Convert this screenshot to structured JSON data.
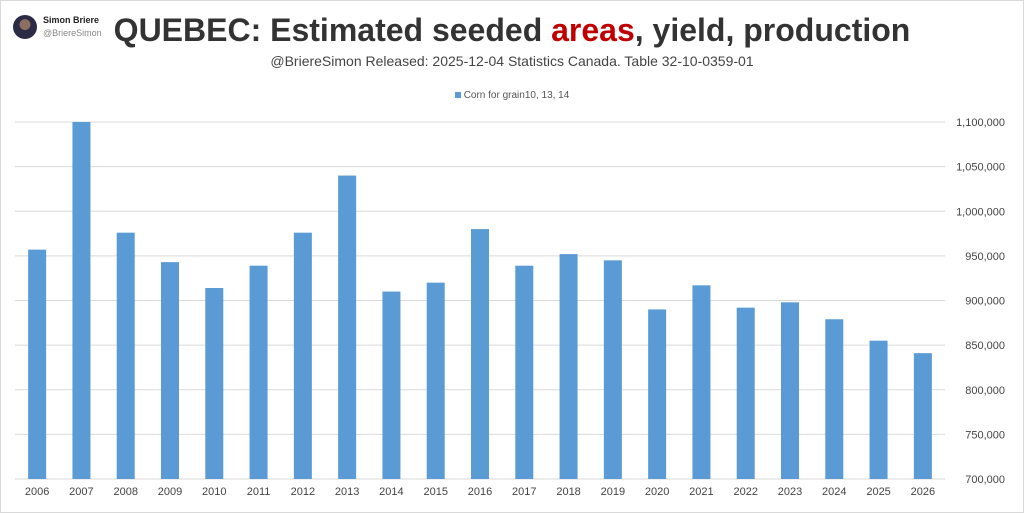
{
  "header": {
    "user_name": "Simon Briere",
    "user_handle": "@BriereSimon"
  },
  "chart_data": {
    "type": "bar",
    "title_parts": [
      "QUEBEC: Estimated seeded ",
      "areas",
      ", yield, production"
    ],
    "subtitle": "@BriereSimon Released:  2025-12-04 Statistics Canada. Table 32-10-0359-01",
    "legend": "Corn for grain10, 13, 14",
    "legend_position": "top",
    "color": "#5b9bd5",
    "title_highlight_color": "#c00000",
    "grid": true,
    "y_axis_side": "right",
    "ylim": [
      700000,
      1100000
    ],
    "yticks": [
      "700,000",
      "750,000",
      "800,000",
      "850,000",
      "900,000",
      "950,000",
      "1,000,000",
      "1,050,000",
      "1,100,000"
    ],
    "categories": [
      "2006",
      "2007",
      "2008",
      "2009",
      "2010",
      "2011",
      "2012",
      "2013",
      "2014",
      "2015",
      "2016",
      "2017",
      "2018",
      "2019",
      "2020",
      "2021",
      "2022",
      "2023",
      "2024",
      "2025",
      "2026"
    ],
    "series": [
      {
        "name": "Corn for grain10, 13, 14",
        "values": [
          957000,
          1100000,
          976000,
          943000,
          914000,
          939000,
          976000,
          1040000,
          910000,
          920000,
          980000,
          939000,
          952000,
          945000,
          890000,
          917000,
          892000,
          898000,
          879000,
          855000,
          841000
        ]
      }
    ]
  }
}
